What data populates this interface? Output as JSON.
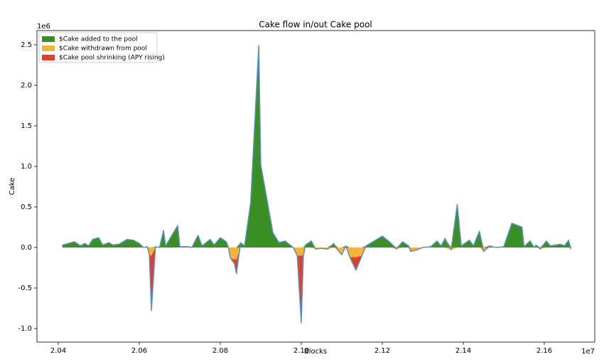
{
  "chart_data": {
    "type": "area",
    "title": "Cake flow in/out Cake pool",
    "xlabel": "Blocks",
    "ylabel": "Cake",
    "x_offset_label": "1e7",
    "y_offset_label": "1e6",
    "x": [
      2.041,
      2.044,
      2.0455,
      2.0465,
      2.0475,
      2.0485,
      2.05,
      2.051,
      2.0525,
      2.0535,
      2.055,
      2.057,
      2.0585,
      2.06,
      2.061,
      2.062,
      2.0625,
      2.063,
      2.064,
      2.065,
      2.066,
      2.0665,
      2.0695,
      2.07,
      2.072,
      2.073,
      2.0745,
      2.0755,
      2.0775,
      2.0785,
      2.08,
      2.0815,
      2.082,
      2.0825,
      2.0835,
      2.084,
      2.085,
      2.086,
      2.0875,
      2.0895,
      2.09,
      2.093,
      2.0945,
      2.096,
      2.098,
      2.099,
      2.1,
      2.1005,
      2.101,
      2.1025,
      2.1035,
      2.105,
      2.1065,
      2.108,
      2.109,
      2.11,
      2.111,
      2.112,
      2.1135,
      2.115,
      2.116,
      2.118,
      2.12,
      2.122,
      2.1235,
      2.125,
      2.1265,
      2.127,
      2.1285,
      2.13,
      2.132,
      2.1335,
      2.1345,
      2.1355,
      2.137,
      2.1385,
      2.1395,
      2.1415,
      2.1425,
      2.144,
      2.145,
      2.1465,
      2.148,
      2.15,
      2.152,
      2.1545,
      2.155,
      2.1565,
      2.1575,
      2.158,
      2.159,
      2.1605,
      2.1615,
      2.164,
      2.165,
      2.166,
      2.1666
    ],
    "line_color": "#5a8fbf",
    "series": [
      {
        "name": "$Cake added to the pool",
        "color": "#3a8f25",
        "values": [
          0.03,
          0.07,
          0.02,
          0.05,
          0.02,
          0.1,
          0.12,
          0.03,
          0.06,
          0.03,
          0.04,
          0.1,
          0.09,
          0.05,
          0,
          0.01,
          0,
          0,
          0.01,
          0,
          0.21,
          0.02,
          0.27,
          0.01,
          0.01,
          0,
          0.15,
          0.02,
          0.1,
          0.03,
          0.12,
          0.07,
          0,
          0,
          0,
          0,
          0.06,
          0.02,
          0.55,
          2.49,
          1.02,
          0.18,
          0.06,
          0.08,
          0,
          0,
          0,
          0,
          0.03,
          0.08,
          0,
          0,
          0,
          0.05,
          0,
          0,
          0.02,
          0,
          0,
          0,
          0.02,
          0.08,
          0.14,
          0.06,
          0,
          0.07,
          0.02,
          0,
          0,
          0,
          0.01,
          0.08,
          0.02,
          0.11,
          0,
          0.53,
          0.02,
          0.09,
          0.02,
          0.2,
          0,
          0.02,
          0,
          0.01,
          0.3,
          0.25,
          0.01,
          0.08,
          0,
          0.03,
          0,
          0.08,
          0.02,
          0.04,
          0.02,
          0.09,
          0
        ]
      },
      {
        "name": "$Cake withdrawn from pool",
        "color": "#f4b43c",
        "values": [
          0,
          0,
          0,
          0,
          0,
          0,
          0,
          0,
          0,
          0,
          0,
          0,
          0,
          0,
          0,
          0,
          -0.1,
          -0.1,
          0,
          0,
          0,
          0,
          0,
          0,
          0,
          0,
          0,
          0,
          0,
          0,
          0,
          0,
          0,
          -0.13,
          -0.15,
          -0.15,
          0,
          0,
          0,
          0,
          0,
          0,
          0,
          0,
          0,
          -0.1,
          -0.1,
          -0.1,
          0,
          0,
          -0.02,
          -0.01,
          -0.02,
          0,
          -0.03,
          -0.09,
          0,
          -0.12,
          -0.12,
          -0.1,
          0,
          0,
          0,
          0,
          -0.02,
          0,
          0,
          -0.05,
          -0.03,
          0,
          0,
          0,
          0,
          0,
          -0.03,
          0,
          0,
          0,
          0,
          0,
          -0.05,
          0,
          0,
          0,
          0,
          0,
          0,
          0,
          0,
          0,
          -0.02,
          0,
          0,
          0,
          0,
          0,
          -0.02
        ]
      },
      {
        "name": "$Cake pool shrinking (APY rising)",
        "color": "#e0402a",
        "values": [
          0,
          0,
          0,
          0,
          0,
          0,
          0,
          0,
          0,
          0,
          0,
          0,
          0,
          0,
          0,
          0,
          0,
          -0.68,
          0,
          0,
          0,
          0,
          0,
          0,
          0,
          0,
          0,
          0,
          0,
          0,
          0,
          0,
          0,
          0,
          -0.05,
          -0.17,
          0,
          0,
          0,
          0,
          0,
          0,
          0,
          0,
          0,
          0,
          -0.83,
          -0.02,
          0,
          0,
          0,
          0,
          0,
          0,
          0,
          0,
          0,
          0,
          -0.16,
          0,
          0,
          0,
          0,
          0,
          0,
          0,
          0,
          0,
          0,
          0,
          0,
          0,
          0,
          0,
          0,
          0,
          0,
          0,
          0,
          0,
          0,
          0,
          0,
          0,
          0,
          0,
          0,
          0,
          0,
          0,
          0,
          0,
          0,
          0,
          0,
          0,
          0
        ]
      }
    ],
    "xlim": [
      2.03474,
      2.17246
    ],
    "ylim": [
      -1.167,
      2.675
    ],
    "xticks": [
      2.04,
      2.06,
      2.08,
      {
        "value": 2.1,
        "label": "2.10"
      },
      2.12,
      2.14,
      2.16
    ],
    "yticks": [
      {
        "value": -1,
        "label": "-1.0"
      },
      -0.5,
      {
        "value": 0,
        "label": "0.0"
      },
      0.5,
      {
        "value": 1,
        "label": "1.0"
      },
      1.5,
      {
        "value": 2,
        "label": "2.0"
      },
      2.5
    ],
    "legend": "upper left",
    "grid": false
  }
}
